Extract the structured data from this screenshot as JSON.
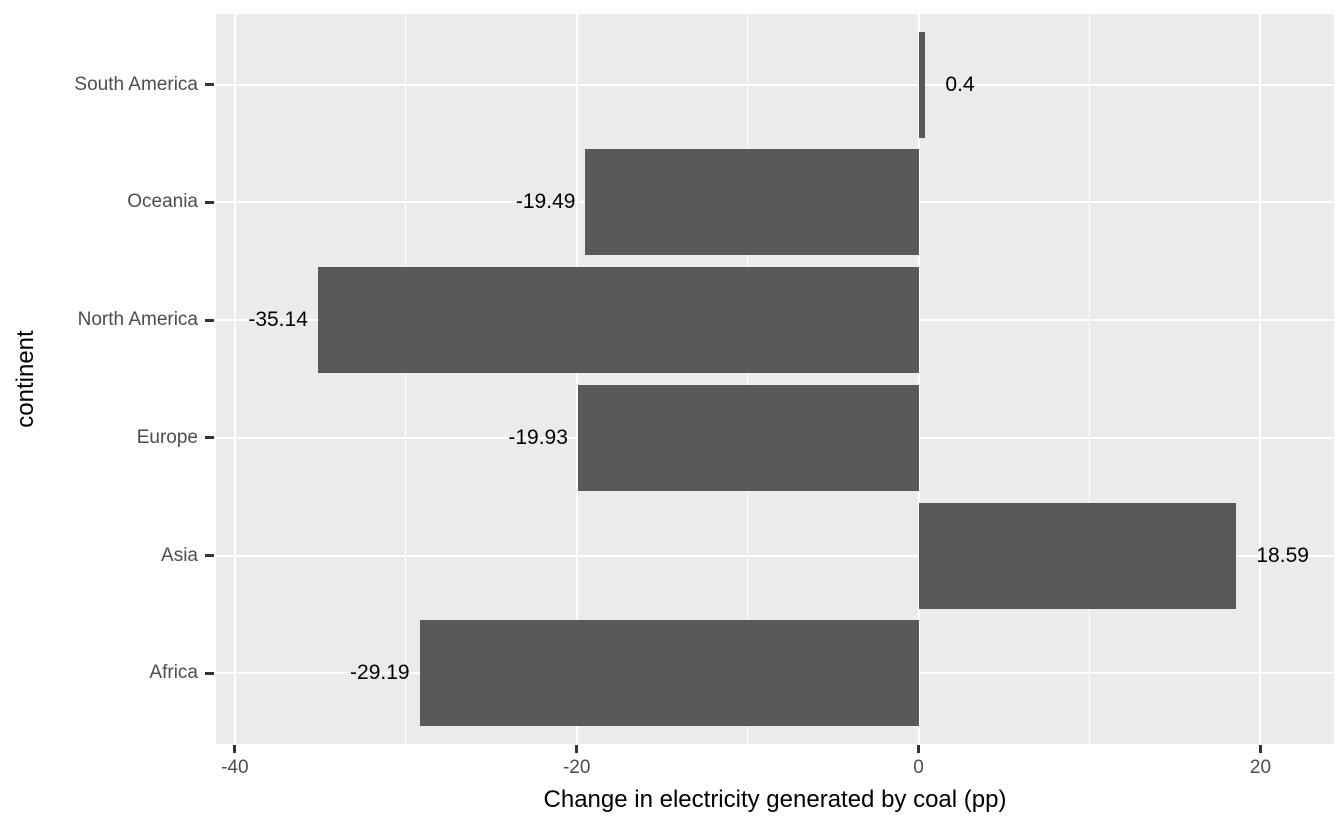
{
  "chart_data": {
    "type": "bar",
    "orientation": "horizontal",
    "title": "",
    "xlabel": "Change in electricity generated by coal (pp)",
    "ylabel": "continent",
    "categories": [
      "South America",
      "Oceania",
      "North America",
      "Europe",
      "Asia",
      "Africa"
    ],
    "values": [
      0.4,
      -19.49,
      -35.14,
      -19.93,
      18.59,
      -29.19
    ],
    "value_labels": [
      "0.4",
      "-19.49",
      "-35.14",
      "-19.93",
      "18.59",
      "-29.19"
    ],
    "xlim": [
      -41.1,
      24.3
    ],
    "x_major_ticks": [
      -40,
      -20,
      0,
      20
    ],
    "x_major_tick_labels": [
      "-40",
      "-20",
      "0",
      "20"
    ],
    "x_minor_ticks": [
      -30,
      -10,
      10
    ],
    "grid": true,
    "legend": "none",
    "colors": {
      "bar": "#595959",
      "panel_background": "#EBEBEB",
      "gridline": "#FFFFFF",
      "tick_label": "#4D4D4D",
      "tick_mark": "#333333",
      "axis_title": "#000000",
      "value_label": "#000000",
      "page_background": "#FFFFFF"
    }
  }
}
